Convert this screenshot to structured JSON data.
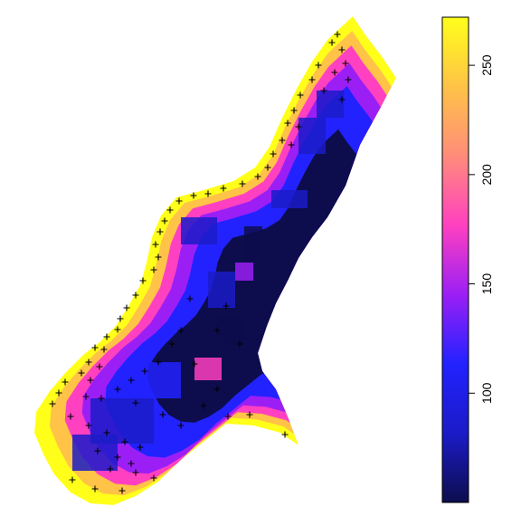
{
  "chart_data": {
    "type": "heatmap",
    "title": "",
    "xlabel": "",
    "ylabel": "",
    "legend_position": "right",
    "color_scale": {
      "min": 50,
      "max": 272,
      "ticks": [
        "100",
        "150",
        "200",
        "250"
      ],
      "tick_values": [
        100,
        150,
        200,
        250
      ],
      "stops": [
        "#0d0d4d",
        "#1b1bc8",
        "#2222ff",
        "#9b1ff5",
        "#ff40c0",
        "#ff8c7a",
        "#ffc347",
        "#ffff1a"
      ]
    },
    "marker_symbol": "+",
    "marker_color": "#000000"
  }
}
